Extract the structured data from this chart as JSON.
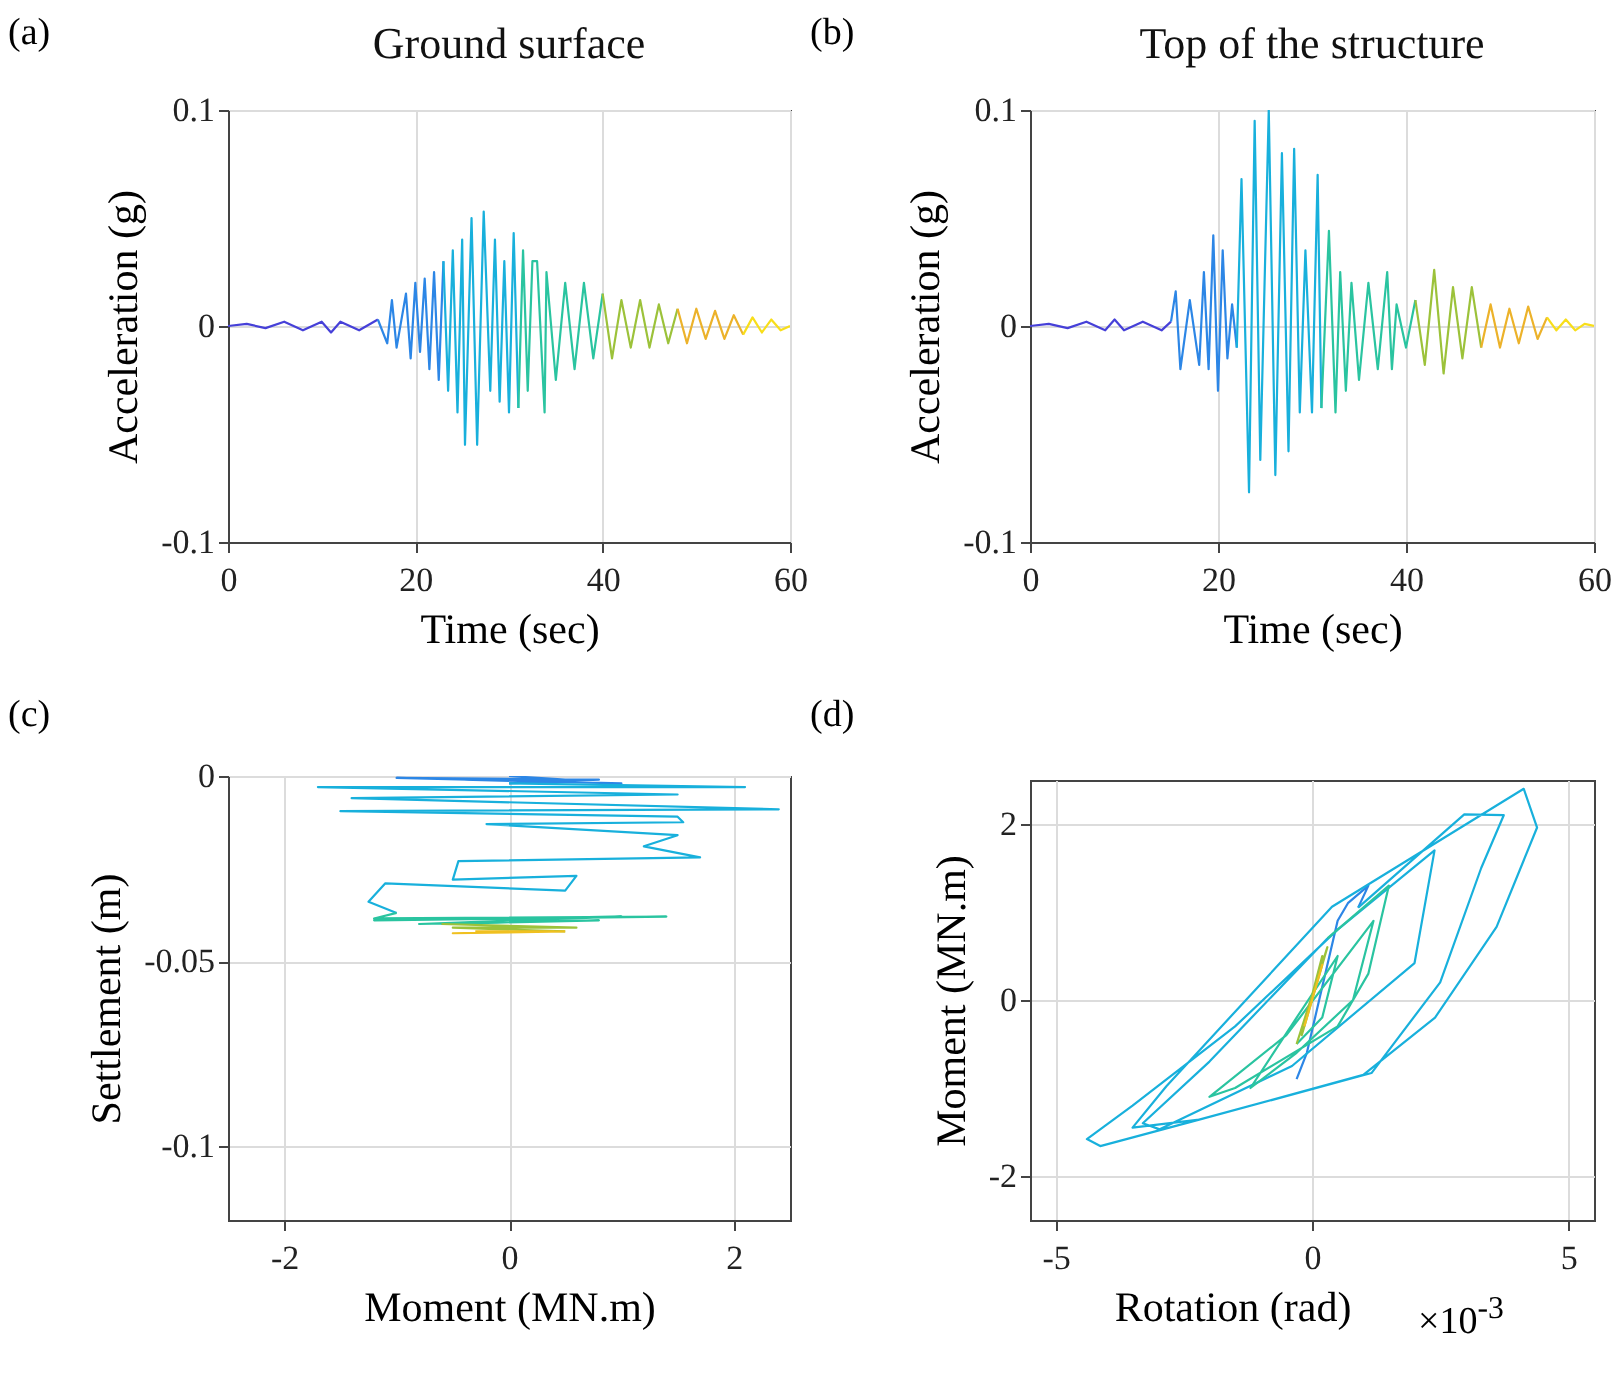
{
  "chart_data": [
    {
      "type": "line",
      "title": "Ground surface",
      "xlabel": "Time (sec)",
      "ylabel": "Acceleration (g)",
      "annotations": [
        "(a)"
      ],
      "xlim": [
        0,
        60
      ],
      "xticks": [
        0,
        20,
        40,
        60
      ],
      "ylim": [
        -0.1,
        0.1
      ],
      "yticks": [
        -0.1,
        0,
        0.1
      ],
      "grid": true,
      "legend": false,
      "series": [
        {
          "color": "#4640d8",
          "x": [
            0,
            2,
            4,
            6,
            8,
            10,
            11,
            12,
            14,
            16
          ],
          "values": [
            0,
            0.001,
            -0.001,
            0.002,
            -0.002,
            0.002,
            -0.003,
            0.002,
            -0.002,
            0.003
          ]
        },
        {
          "color": "#2c86e6",
          "x": [
            16,
            17,
            17.5,
            18,
            19,
            19.5,
            20,
            20.5,
            21,
            21.5,
            22,
            22.5,
            23
          ],
          "values": [
            0.003,
            -0.008,
            0.012,
            -0.01,
            0.015,
            -0.015,
            0.02,
            -0.012,
            0.022,
            -0.02,
            0.025,
            -0.025,
            0.03
          ]
        },
        {
          "color": "#18b0dc",
          "x": [
            23,
            23.5,
            24,
            24.5,
            25,
            25.3,
            26,
            26.6,
            27.3,
            28,
            28.5,
            29,
            29.5,
            30,
            30.5,
            31
          ],
          "values": [
            0.03,
            -0.03,
            0.035,
            -0.04,
            0.04,
            -0.055,
            0.05,
            -0.055,
            0.053,
            -0.03,
            0.04,
            -0.035,
            0.03,
            -0.04,
            0.043,
            -0.038
          ]
        },
        {
          "color": "#2ac4a0",
          "x": [
            31,
            31.5,
            32,
            32.5,
            33,
            33.8,
            34,
            35,
            36,
            37,
            38,
            39,
            40
          ],
          "values": [
            -0.038,
            0.035,
            -0.03,
            0.03,
            0.03,
            -0.04,
            0.025,
            -0.025,
            0.02,
            -0.02,
            0.02,
            -0.015,
            0.015
          ]
        },
        {
          "color": "#9cc23a",
          "x": [
            40,
            41,
            42,
            43,
            44,
            45,
            46,
            47,
            48
          ],
          "values": [
            0.015,
            -0.015,
            0.012,
            -0.01,
            0.012,
            -0.01,
            0.01,
            -0.008,
            0.008
          ]
        },
        {
          "color": "#ecb22a",
          "x": [
            48,
            49,
            50,
            51,
            52,
            53,
            54,
            55
          ],
          "values": [
            0.008,
            -0.008,
            0.008,
            -0.006,
            0.007,
            -0.006,
            0.005,
            -0.004
          ]
        },
        {
          "color": "#f8de1a",
          "x": [
            55,
            56,
            57,
            58,
            59,
            60
          ],
          "values": [
            -0.004,
            0.004,
            -0.003,
            0.003,
            -0.002,
            0
          ]
        }
      ]
    },
    {
      "type": "line",
      "title": "Top of the structure",
      "xlabel": "Time (sec)",
      "ylabel": "Acceleration (g)",
      "annotations": [
        "(b)"
      ],
      "xlim": [
        0,
        60
      ],
      "xticks": [
        0,
        20,
        40,
        60
      ],
      "ylim": [
        -0.1,
        0.1
      ],
      "yticks": [
        -0.1,
        0,
        0.1
      ],
      "grid": true,
      "legend": false,
      "series": [
        {
          "color": "#4640d8",
          "x": [
            0,
            2,
            4,
            6,
            8,
            9,
            10,
            12,
            14,
            15
          ],
          "values": [
            0,
            0.001,
            -0.001,
            0.002,
            -0.002,
            0.003,
            -0.002,
            0.002,
            -0.002,
            0.002
          ]
        },
        {
          "color": "#2c86e6",
          "x": [
            15,
            15.5,
            16,
            17,
            18,
            18.5,
            19,
            19.5,
            20,
            20.5,
            21,
            21.5,
            22
          ],
          "values": [
            0.002,
            0.016,
            -0.02,
            0.012,
            -0.018,
            0.025,
            -0.02,
            0.042,
            -0.03,
            0.035,
            -0.015,
            0.01,
            -0.01
          ]
        },
        {
          "color": "#18b0dc",
          "x": [
            22,
            22.5,
            23.3,
            23.9,
            24.5,
            25.4,
            26.1,
            26.8,
            27.5,
            28.1,
            28.7,
            29.3,
            30,
            30.6,
            31
          ],
          "values": [
            -0.01,
            0.068,
            -0.077,
            0.095,
            -0.062,
            0.1,
            -0.069,
            0.08,
            -0.058,
            0.082,
            -0.04,
            0.035,
            -0.04,
            0.07,
            -0.038
          ]
        },
        {
          "color": "#2ac4a0",
          "x": [
            31,
            31.8,
            32.5,
            33,
            33.6,
            34.2,
            35,
            36,
            37,
            38,
            38.5,
            39,
            40,
            41
          ],
          "values": [
            -0.038,
            0.044,
            -0.04,
            0.025,
            -0.03,
            0.02,
            -0.025,
            0.02,
            -0.02,
            0.025,
            -0.02,
            0.01,
            -0.01,
            0.012
          ]
        },
        {
          "color": "#9cc23a",
          "x": [
            41,
            42,
            43,
            44,
            45,
            46,
            47,
            48
          ],
          "values": [
            0.012,
            -0.018,
            0.026,
            -0.022,
            0.018,
            -0.015,
            0.018,
            -0.01
          ]
        },
        {
          "color": "#ecb22a",
          "x": [
            48,
            49,
            50,
            51,
            52,
            53,
            54,
            55
          ],
          "values": [
            -0.01,
            0.01,
            -0.01,
            0.008,
            -0.008,
            0.009,
            -0.006,
            0.004
          ]
        },
        {
          "color": "#f8de1a",
          "x": [
            55,
            56,
            57,
            58,
            59,
            60
          ],
          "values": [
            0.004,
            -0.002,
            0.003,
            -0.002,
            0.001,
            0
          ]
        }
      ]
    },
    {
      "type": "line",
      "xlabel": "Moment (MN.m)",
      "ylabel": "Settlement (m)",
      "annotations": [
        "(c)"
      ],
      "xlim": [
        -2.5,
        2.5
      ],
      "xticks": [
        -2,
        0,
        2
      ],
      "ylim": [
        -0.12,
        0
      ],
      "yticks": [
        -0.1,
        -0.05,
        0
      ],
      "grid": true,
      "legend": false,
      "series": [
        {
          "color": "#2c86e6",
          "x": [
            0,
            0.5,
            -0.4,
            1,
            -1,
            0.8,
            0
          ],
          "values": [
            0,
            -0.001,
            -0.001,
            -0.002,
            -0.0005,
            -0.001,
            -0.002
          ]
        },
        {
          "color": "#18b0dc",
          "x": [
            0,
            2.1,
            -1.7,
            1.5,
            -1.4,
            2.4,
            -1.5,
            1.5,
            1.55,
            -0.2,
            1.5,
            1.2,
            1.7,
            -0.45,
            -0.5,
            0.6,
            0.5,
            -1.1,
            -1.25,
            -1.0
          ],
          "values": [
            -0.002,
            -0.003,
            -0.003,
            -0.005,
            -0.006,
            -0.009,
            -0.0095,
            -0.011,
            -0.0125,
            -0.013,
            -0.016,
            -0.019,
            -0.022,
            -0.023,
            -0.028,
            -0.027,
            -0.031,
            -0.029,
            -0.034,
            -0.037
          ]
        },
        {
          "color": "#2ac4a0",
          "x": [
            -1.0,
            -1.2,
            1.4,
            -1.2,
            1.0,
            -0.8,
            0.8,
            -0.6
          ],
          "values": [
            -0.037,
            -0.0385,
            -0.038,
            -0.039,
            -0.038,
            -0.04,
            -0.039,
            -0.04
          ]
        },
        {
          "color": "#9cc23a",
          "x": [
            -0.6,
            0.6,
            -0.5,
            0.5
          ],
          "values": [
            -0.04,
            -0.041,
            -0.041,
            -0.042
          ]
        },
        {
          "color": "#f0c020",
          "x": [
            0.5,
            -0.5,
            0.4,
            -0.3
          ],
          "values": [
            -0.042,
            -0.0425,
            -0.042,
            -0.042
          ]
        }
      ]
    },
    {
      "type": "line",
      "xlabel": "Rotation (rad)",
      "ylabel": "Moment (MN.m)",
      "annotations": [
        "(d)",
        "×10$^{-3}$"
      ],
      "xlim": [
        -5.5,
        5.5
      ],
      "xticks": [
        -5,
        0,
        5
      ],
      "ylim": [
        -2.5,
        2.5
      ],
      "yticks": [
        -2,
        0,
        2
      ],
      "grid": true,
      "legend": false,
      "series": [
        {
          "color": "#2c86e6",
          "x": [
            -0.3,
            -0.1,
            0.5,
            0.7,
            1.1,
            0.9
          ],
          "values": [
            -0.9,
            -0.6,
            0.9,
            1.1,
            1.3,
            1.05
          ]
        },
        {
          "color": "#18b0dc",
          "x": [
            0.9,
            2.97,
            3.74,
            3.3,
            2.5,
            1.16,
            -2.2,
            -3.5,
            -2.84,
            0.39,
            4.13,
            4.39,
            3.6,
            2.4,
            1.0,
            -2.2,
            -4.13,
            -4.39,
            -3.5,
            -1.5,
            0.5,
            2.39,
            2.0,
            -0.39,
            -2.97,
            -3.3,
            -2.0,
            0.3
          ],
          "values": [
            1.05,
            2.11,
            2.1,
            1.5,
            0.2,
            -0.83,
            -1.36,
            -1.45,
            -0.98,
            1.06,
            2.4,
            1.96,
            0.83,
            -0.2,
            -0.85,
            -1.36,
            -1.66,
            -1.58,
            -1.2,
            -0.3,
            0.8,
            1.7,
            0.42,
            -0.75,
            -1.47,
            -1.4,
            -0.7,
            0.7
          ]
        },
        {
          "color": "#2ac4a0",
          "x": [
            0.3,
            1.5,
            1.1,
            0.5,
            -1.5,
            -2.0,
            -0.5,
            1.2,
            0.8,
            -0.3,
            -1.2,
            -0.3,
            0.5,
            0.2,
            -0.3
          ],
          "values": [
            0.7,
            1.3,
            0.3,
            -0.3,
            -1.0,
            -1.1,
            -0.4,
            0.9,
            0,
            -0.6,
            -1.0,
            -0.2,
            0.5,
            -0.2,
            -0.5
          ]
        },
        {
          "color": "#9cc23a",
          "x": [
            -0.3,
            0.3,
            -0.2,
            0.2,
            -0.15
          ],
          "values": [
            -0.5,
            0.6,
            -0.4,
            0.5,
            -0.3
          ]
        },
        {
          "color": "#f0c020",
          "x": [
            -0.15,
            0.2,
            -0.1,
            0.15,
            0
          ],
          "values": [
            -0.3,
            0.4,
            -0.2,
            0.3,
            0
          ]
        }
      ]
    }
  ]
}
